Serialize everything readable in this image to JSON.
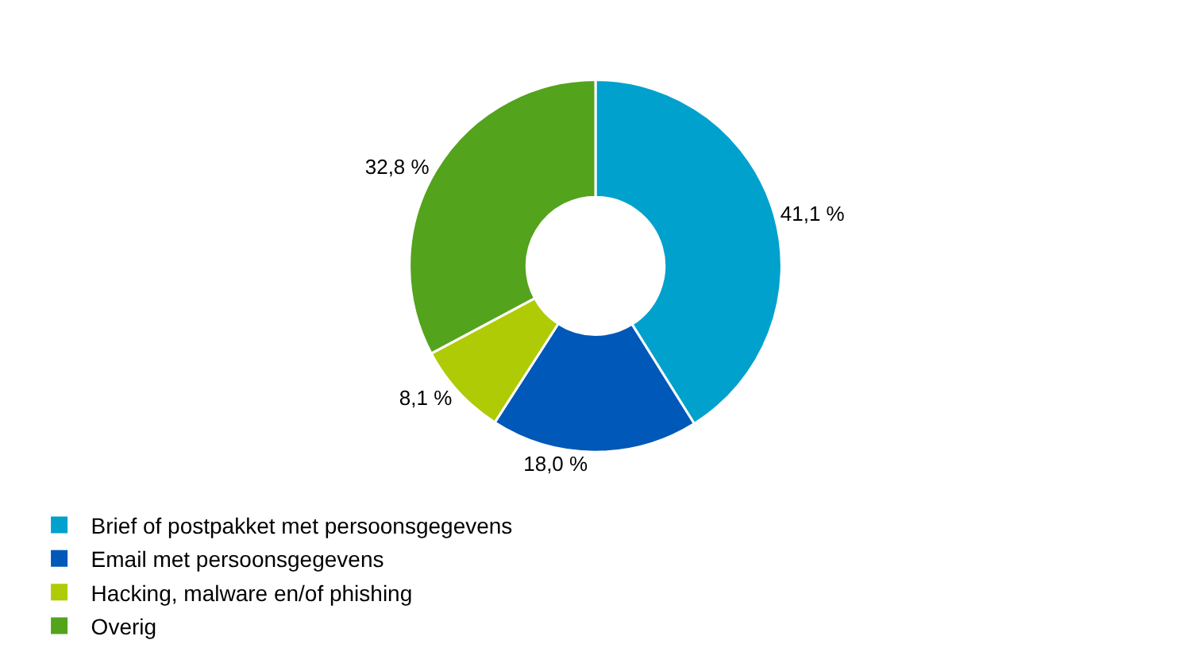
{
  "chart_data": {
    "type": "donut",
    "categories": [
      "Brief of postpakket met persoonsgegevens",
      "Email met persoonsgegevens",
      "Hacking, malware en/of phishing",
      "Overig"
    ],
    "values": [
      41.1,
      18.0,
      8.1,
      32.8
    ],
    "value_labels": [
      "41,1 %",
      "18,0 %",
      "8,1 %",
      "32,8 %"
    ],
    "colors": [
      "#00a1cd",
      "#0058b8",
      "#afcb05",
      "#53a31d"
    ],
    "legend": "bottom"
  }
}
